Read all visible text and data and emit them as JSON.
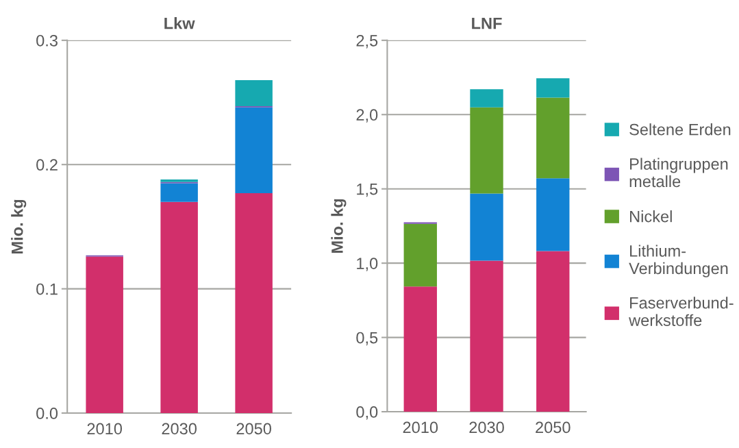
{
  "chart_data": [
    {
      "type": "bar",
      "title": "Lkw",
      "ylabel": "Mio. kg",
      "stacked": true,
      "categories": [
        "2010",
        "2030",
        "2050"
      ],
      "ylim": [
        0,
        0.3
      ],
      "yticks": [
        {
          "value": 0,
          "label": "0.0"
        },
        {
          "value": 0.1,
          "label": "0.1"
        },
        {
          "value": 0.2,
          "label": "0.2"
        },
        {
          "value": 0.3,
          "label": "0.3"
        }
      ],
      "grid": "y",
      "legend": false,
      "series": [
        {
          "color": "#d22f6b",
          "values": [
            0.126,
            0.17,
            0.177
          ]
        },
        {
          "color": "#1283d4",
          "values": [
            null,
            0.015,
            0.069
          ]
        },
        {
          "color": "#7d55b5",
          "values": [
            0.001,
            0.001,
            0.001
          ]
        },
        {
          "color": "#16a9b0",
          "values": [
            null,
            0.002,
            0.021
          ]
        }
      ]
    },
    {
      "type": "bar",
      "title": "LNF",
      "ylabel": "Mio. kg",
      "stacked": true,
      "categories": [
        "2010",
        "2030",
        "2050"
      ],
      "ylim": [
        0,
        2.5
      ],
      "yticks": [
        {
          "value": 0,
          "label": "0,0"
        },
        {
          "value": 0.5,
          "label": "0,5"
        },
        {
          "value": 1.0,
          "label": "1,0"
        },
        {
          "value": 1.5,
          "label": "1,5"
        },
        {
          "value": 2.0,
          "label": "2,0"
        },
        {
          "value": 2.5,
          "label": "2,5"
        }
      ],
      "grid": "y",
      "legend": "right",
      "series": [
        {
          "name": "Faserverbund-\nwerkstoffe",
          "color": "#d22f6b",
          "values": [
            0.843,
            1.017,
            1.082
          ]
        },
        {
          "name": "Lithium-\nVerbindungen",
          "color": "#1283d4",
          "values": [
            null,
            0.452,
            0.489
          ]
        },
        {
          "name": "Nickel",
          "color": "#62a02c",
          "values": [
            0.422,
            0.58,
            0.543
          ]
        },
        {
          "name": "Platingruppen\nmetalle",
          "color": "#7d55b5",
          "values": [
            0.01,
            null,
            null
          ]
        },
        {
          "name": "Seltene Erden",
          "color": "#16a9b0",
          "values": [
            null,
            0.122,
            0.131
          ]
        }
      ]
    }
  ]
}
